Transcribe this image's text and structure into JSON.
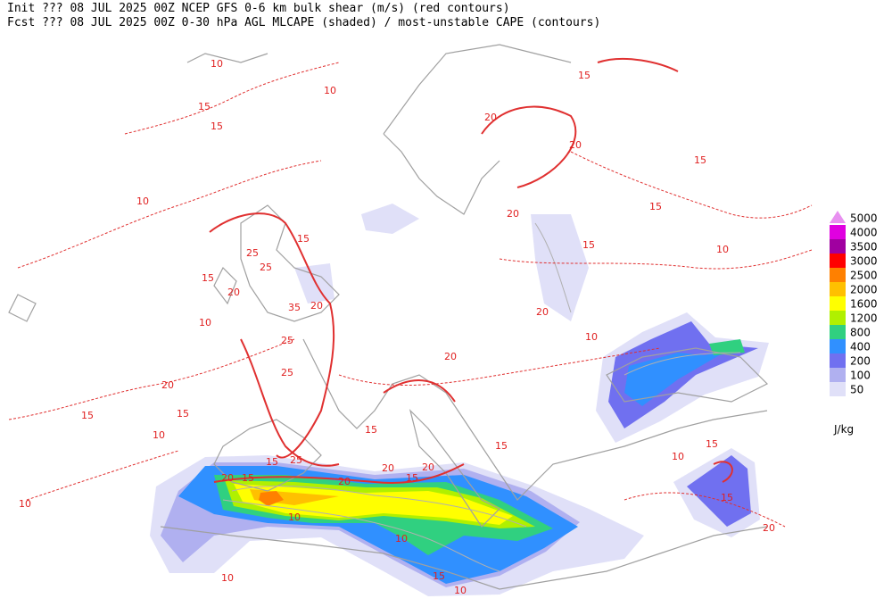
{
  "header": {
    "line1": "Init  ??? 08 JUL 2025 00Z  NCEP GFS 0-6 km bulk shear (m/s) (red contours)",
    "line2": "Fcst ??? 08 JUL 2025 00Z  0-30 hPa AGL MLCAPE (shaded) / most-unstable CAPE (contours)"
  },
  "legend": {
    "levels": [
      5000,
      4000,
      3500,
      3000,
      2500,
      2000,
      1600,
      1200,
      800,
      400,
      200,
      100,
      50
    ],
    "colors": [
      "#e890f0",
      "#e000e0",
      "#a000a0",
      "#ff0000",
      "#ff8000",
      "#ffc000",
      "#ffff00",
      "#b0f000",
      "#30d080",
      "#3090ff",
      "#7070f0",
      "#b0b0f0",
      "#e0e0f8"
    ],
    "unit": "J/kg"
  },
  "map": {
    "contour_labels": [
      "10",
      "10",
      "15",
      "15",
      "10",
      "15",
      "25",
      "25",
      "15",
      "20",
      "35",
      "20",
      "25",
      "10",
      "25",
      "20",
      "15",
      "15",
      "10",
      "10",
      "20",
      "15",
      "15",
      "25",
      "20",
      "10",
      "15",
      "20",
      "15",
      "10",
      "15",
      "10",
      "15",
      "20",
      "20",
      "20",
      "10",
      "20",
      "15",
      "20",
      "20",
      "15",
      "15",
      "15",
      "10",
      "15",
      "10",
      "15",
      "20",
      "10"
    ]
  }
}
